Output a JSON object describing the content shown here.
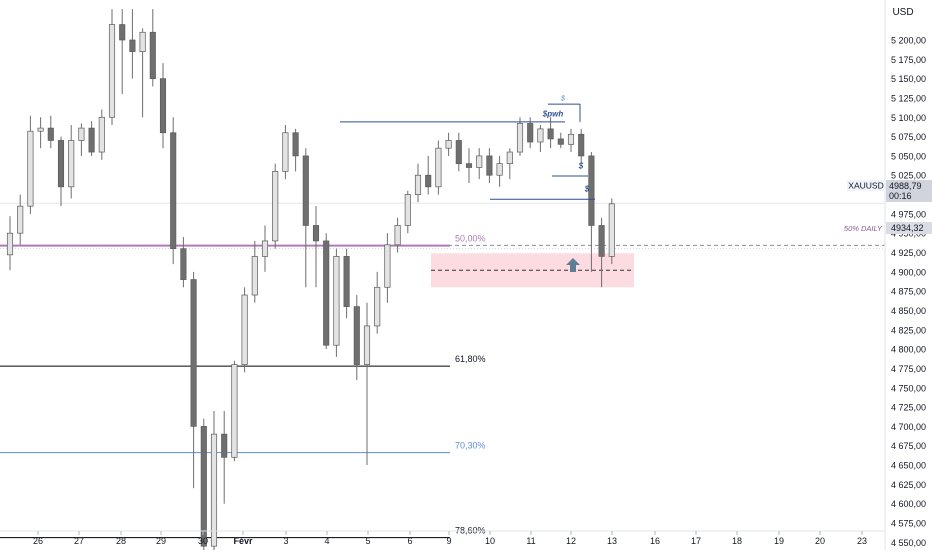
{
  "chart_data": {
    "type": "candlestick",
    "symbol": "XAUUSD",
    "currency": "USD",
    "current_price": "4988,79",
    "countdown": "00:16",
    "marker_price": "4934,32",
    "marker_label": "50% DAILY",
    "y_axis": {
      "range": [
        4540,
        5225
      ],
      "ticks": [
        "5 200,00",
        "5 175,00",
        "5 150,00",
        "5 125,00",
        "5 100,00",
        "5 075,00",
        "5 050,00",
        "5 025,00",
        "5 000,00",
        "4 975,00",
        "4 950,00",
        "4 925,00",
        "4 900,00",
        "4 875,00",
        "4 850,00",
        "4 825,00",
        "4 800,00",
        "4 775,00",
        "4 750,00",
        "4 725,00",
        "4 700,00",
        "4 675,00",
        "4 650,00",
        "4 625,00",
        "4 600,00",
        "4 575,00",
        "4 550,00"
      ]
    },
    "x_axis": {
      "ticks": [
        "26",
        "27",
        "28",
        "29",
        "30",
        "Févr",
        "3",
        "4",
        "5",
        "6",
        "9",
        "10",
        "11",
        "12",
        "13",
        "16",
        "17",
        "18",
        "19",
        "20",
        "23"
      ]
    },
    "fib_levels": [
      {
        "label": "50,00%",
        "price": 4934,
        "color": "#b07ab8"
      },
      {
        "label": "61,80%",
        "price": 4778,
        "color": "#000000"
      },
      {
        "label": "70,30%",
        "price": 4666,
        "color": "#5b8fdc"
      },
      {
        "label": "78,60%",
        "price": 4556,
        "color": "#000000"
      }
    ],
    "annotations": {
      "pwh_label": "$pwh",
      "liq_small": "$",
      "liq_1": "$",
      "liq_2": "$"
    },
    "demand_zone": {
      "top": 4924,
      "bottom": 4880
    },
    "candles": [
      {
        "o": 4922,
        "h": 4972,
        "l": 4902,
        "c": 4950
      },
      {
        "o": 4950,
        "h": 5000,
        "l": 4935,
        "c": 4985
      },
      {
        "o": 4985,
        "h": 5102,
        "l": 4975,
        "c": 5082
      },
      {
        "o": 5082,
        "h": 5100,
        "l": 5060,
        "c": 5086
      },
      {
        "o": 5086,
        "h": 5102,
        "l": 5060,
        "c": 5070
      },
      {
        "o": 5070,
        "h": 5075,
        "l": 4985,
        "c": 5010
      },
      {
        "o": 5010,
        "h": 5090,
        "l": 4995,
        "c": 5070
      },
      {
        "o": 5070,
        "h": 5092,
        "l": 5050,
        "c": 5086
      },
      {
        "o": 5086,
        "h": 5095,
        "l": 5050,
        "c": 5055
      },
      {
        "o": 5055,
        "h": 5110,
        "l": 5045,
        "c": 5100
      },
      {
        "o": 5100,
        "h": 5240,
        "l": 5090,
        "c": 5220
      },
      {
        "o": 5220,
        "h": 5240,
        "l": 5130,
        "c": 5200
      },
      {
        "o": 5200,
        "h": 5240,
        "l": 5150,
        "c": 5185
      },
      {
        "o": 5185,
        "h": 5215,
        "l": 5100,
        "c": 5210
      },
      {
        "o": 5210,
        "h": 5240,
        "l": 5140,
        "c": 5150
      },
      {
        "o": 5150,
        "h": 5170,
        "l": 5060,
        "c": 5080
      },
      {
        "o": 5080,
        "h": 5100,
        "l": 4910,
        "c": 4930
      },
      {
        "o": 4930,
        "h": 4945,
        "l": 4880,
        "c": 4890
      },
      {
        "o": 4890,
        "h": 4900,
        "l": 4620,
        "c": 4700
      },
      {
        "o": 4700,
        "h": 4710,
        "l": 4535,
        "c": 4545
      },
      {
        "o": 4545,
        "h": 4720,
        "l": 4540,
        "c": 4690
      },
      {
        "o": 4690,
        "h": 4720,
        "l": 4600,
        "c": 4660
      },
      {
        "o": 4660,
        "h": 4785,
        "l": 4655,
        "c": 4780
      },
      {
        "o": 4780,
        "h": 4880,
        "l": 4770,
        "c": 4870
      },
      {
        "o": 4870,
        "h": 4940,
        "l": 4860,
        "c": 4920
      },
      {
        "o": 4920,
        "h": 4960,
        "l": 4900,
        "c": 4940
      },
      {
        "o": 4940,
        "h": 5040,
        "l": 4930,
        "c": 5030
      },
      {
        "o": 5030,
        "h": 5090,
        "l": 5020,
        "c": 5080
      },
      {
        "o": 5080,
        "h": 5085,
        "l": 5030,
        "c": 5050
      },
      {
        "o": 5050,
        "h": 5060,
        "l": 4880,
        "c": 4960
      },
      {
        "o": 4960,
        "h": 4985,
        "l": 4880,
        "c": 4940
      },
      {
        "o": 4940,
        "h": 4950,
        "l": 4800,
        "c": 4805
      },
      {
        "o": 4805,
        "h": 4930,
        "l": 4790,
        "c": 4920
      },
      {
        "o": 4920,
        "h": 4930,
        "l": 4840,
        "c": 4855
      },
      {
        "o": 4855,
        "h": 4870,
        "l": 4760,
        "c": 4780
      },
      {
        "o": 4780,
        "h": 4860,
        "l": 4650,
        "c": 4830
      },
      {
        "o": 4830,
        "h": 4900,
        "l": 4820,
        "c": 4880
      },
      {
        "o": 4880,
        "h": 4950,
        "l": 4860,
        "c": 4935
      },
      {
        "o": 4935,
        "h": 4970,
        "l": 4925,
        "c": 4960
      },
      {
        "o": 4960,
        "h": 5005,
        "l": 4950,
        "c": 5000
      },
      {
        "o": 5000,
        "h": 5040,
        "l": 4990,
        "c": 5025
      },
      {
        "o": 5025,
        "h": 5050,
        "l": 5000,
        "c": 5010
      },
      {
        "o": 5010,
        "h": 5070,
        "l": 5000,
        "c": 5060
      },
      {
        "o": 5060,
        "h": 5080,
        "l": 5050,
        "c": 5070
      },
      {
        "o": 5070,
        "h": 5080,
        "l": 5030,
        "c": 5040
      },
      {
        "o": 5040,
        "h": 5060,
        "l": 5015,
        "c": 5035
      },
      {
        "o": 5035,
        "h": 5060,
        "l": 5020,
        "c": 5050
      },
      {
        "o": 5050,
        "h": 5060,
        "l": 5015,
        "c": 5025
      },
      {
        "o": 5025,
        "h": 5050,
        "l": 5010,
        "c": 5040
      },
      {
        "o": 5040,
        "h": 5060,
        "l": 5020,
        "c": 5055
      },
      {
        "o": 5055,
        "h": 5100,
        "l": 5050,
        "c": 5092
      },
      {
        "o": 5092,
        "h": 5100,
        "l": 5060,
        "c": 5068
      },
      {
        "o": 5068,
        "h": 5090,
        "l": 5055,
        "c": 5085
      },
      {
        "o": 5085,
        "h": 5100,
        "l": 5060,
        "c": 5072
      },
      {
        "o": 5072,
        "h": 5080,
        "l": 5060,
        "c": 5065
      },
      {
        "o": 5065,
        "h": 5085,
        "l": 5055,
        "c": 5078
      },
      {
        "o": 5078,
        "h": 5085,
        "l": 5040,
        "c": 5050
      },
      {
        "o": 5050,
        "h": 5055,
        "l": 4900,
        "c": 4960
      },
      {
        "o": 4960,
        "h": 4970,
        "l": 4880,
        "c": 4920
      },
      {
        "o": 4920,
        "h": 4995,
        "l": 4910,
        "c": 4988
      }
    ]
  }
}
